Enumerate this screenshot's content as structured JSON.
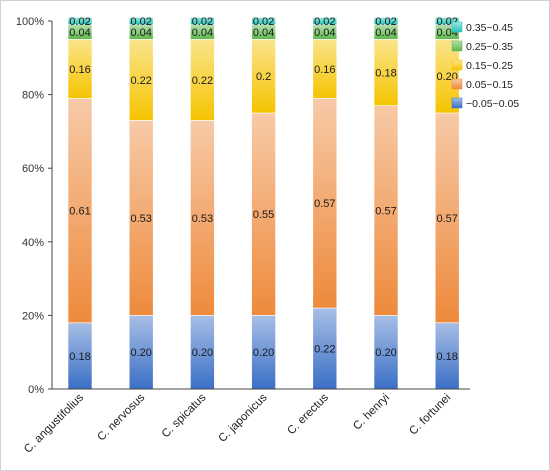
{
  "chart_data": {
    "type": "bar",
    "stacked": true,
    "title": "",
    "xlabel": "",
    "ylabel": "",
    "ylim": [
      0,
      1
    ],
    "y_ticks": [
      "0%",
      "20%",
      "40%",
      "60%",
      "80%",
      "100%"
    ],
    "grid": false,
    "legend_position": "top-right",
    "categories": [
      "C. angustifolius",
      "C. nervosus",
      "C. spicatus",
      "C. japonicus",
      "C. erectus",
      "C. henryi",
      "C. fortunei"
    ],
    "series": [
      {
        "name": "−0.05~0.05",
        "color": "#3b6fc6",
        "values": [
          0.18,
          0.2,
          0.2,
          0.2,
          0.22,
          0.2,
          0.18
        ],
        "labels": [
          "0.18",
          "0.20",
          "0.20",
          "0.20",
          "0.22",
          "0.20",
          "0.18"
        ]
      },
      {
        "name": "0.05~0.15",
        "color": "#ee8a3c",
        "values": [
          0.61,
          0.53,
          0.53,
          0.55,
          0.57,
          0.57,
          0.57
        ],
        "labels": [
          "0.61",
          "0.53",
          "0.53",
          "0.55",
          "0.57",
          "0.57",
          "0.57"
        ]
      },
      {
        "name": "0.15~0.25",
        "color": "#f5c400",
        "values": [
          0.16,
          0.22,
          0.22,
          0.2,
          0.16,
          0.18,
          0.2
        ],
        "labels": [
          "0.16",
          "0.22",
          "0.22",
          "0.2",
          "0.16",
          "0.18",
          "0.20"
        ]
      },
      {
        "name": "0.25~0.35",
        "color": "#5cb84a",
        "values": [
          0.04,
          0.04,
          0.04,
          0.04,
          0.04,
          0.04,
          0.04
        ],
        "labels": [
          "0.04",
          "0.04",
          "0.04",
          "0.04",
          "0.04",
          "0.04",
          "0.04"
        ]
      },
      {
        "name": "0.35~0.45",
        "color": "#25c4b9",
        "values": [
          0.02,
          0.02,
          0.02,
          0.02,
          0.02,
          0.02,
          0.02
        ],
        "labels": [
          "0.02",
          "0.02",
          "0.02",
          "0.02",
          "0.02",
          "0.02",
          "0.02"
        ]
      }
    ],
    "legend_order": [
      "0.35~0.45",
      "0.25~0.35",
      "0.15~0.25",
      "0.05~0.15",
      "−0.05~0.05"
    ]
  }
}
